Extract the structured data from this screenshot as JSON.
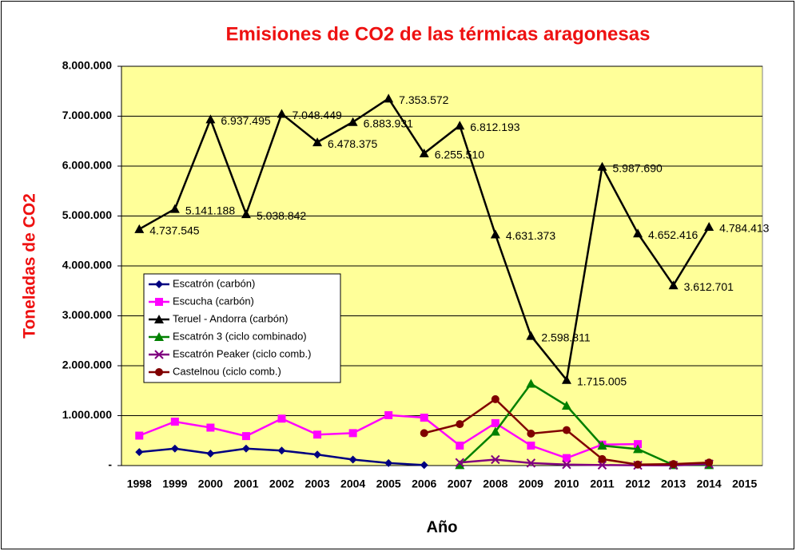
{
  "chart_data": {
    "type": "line",
    "title": "Emisiones de CO2 de las térmicas aragonesas",
    "x_label": "Año",
    "y_label": "Toneladas de CO2",
    "categories": [
      "1998",
      "1999",
      "2000",
      "2001",
      "2002",
      "2003",
      "2004",
      "2005",
      "2006",
      "2007",
      "2008",
      "2009",
      "2010",
      "2011",
      "2012",
      "2013",
      "2014",
      "2015"
    ],
    "ylim": [
      0,
      8000000
    ],
    "yticks": [
      {
        "value": 0,
        "label": "-"
      },
      {
        "value": 1000000,
        "label": "1.000.000"
      },
      {
        "value": 2000000,
        "label": "2.000.000"
      },
      {
        "value": 3000000,
        "label": "3.000.000"
      },
      {
        "value": 4000000,
        "label": "4.000.000"
      },
      {
        "value": 5000000,
        "label": "5.000.000"
      },
      {
        "value": 6000000,
        "label": "6.000.000"
      },
      {
        "value": 7000000,
        "label": "7.000.000"
      },
      {
        "value": 8000000,
        "label": "8.000.000"
      }
    ],
    "grid": true,
    "background": "#ffff99",
    "series": [
      {
        "name": "Escatrón (carbón)",
        "color": "#000080",
        "marker": "diamond",
        "values": [
          270000,
          340000,
          240000,
          340000,
          300000,
          220000,
          120000,
          50000,
          10000,
          null,
          null,
          null,
          null,
          null,
          null,
          null,
          null,
          null
        ]
      },
      {
        "name": "Escucha (carbón)",
        "color": "#ff00ff",
        "marker": "square",
        "values": [
          600000,
          880000,
          760000,
          590000,
          940000,
          620000,
          650000,
          1010000,
          960000,
          400000,
          850000,
          400000,
          150000,
          420000,
          430000,
          null,
          null,
          null
        ]
      },
      {
        "name": "Teruel - Andorra (carbón)",
        "color": "#000000",
        "marker": "triangle",
        "values": [
          4737545,
          5141188,
          6937495,
          5038842,
          7048449,
          6478375,
          6883931,
          7353572,
          6255510,
          6812193,
          4631373,
          2598811,
          1715005,
          5987690,
          4652416,
          3612701,
          4784413,
          null
        ],
        "value_labels": [
          "4.737.545",
          "5.141.188",
          "6.937.495",
          "5.038.842",
          "7.048.449",
          "6.478.375",
          "6.883.931",
          "7.353.572",
          "6.255.510",
          "6.812.193",
          "4.631.373",
          "2.598.811",
          "1.715.005",
          "5.987.690",
          "4.652.416",
          "3.612.701",
          "4.784.413",
          null
        ]
      },
      {
        "name": "Escatrón 3 (ciclo combinado)",
        "color": "#008000",
        "marker": "triangle",
        "values": [
          null,
          null,
          null,
          null,
          null,
          null,
          null,
          null,
          null,
          10000,
          680000,
          1640000,
          1200000,
          400000,
          330000,
          10000,
          10000,
          null
        ]
      },
      {
        "name": "Escatrón Peaker (ciclo comb.)",
        "color": "#800080",
        "marker": "x",
        "values": [
          null,
          null,
          null,
          null,
          null,
          null,
          null,
          null,
          null,
          60000,
          120000,
          50000,
          20000,
          10000,
          5000,
          5000,
          30000,
          null
        ]
      },
      {
        "name": "Castelnou (ciclo comb.)",
        "color": "#800000",
        "marker": "circle",
        "values": [
          null,
          null,
          null,
          null,
          null,
          null,
          null,
          null,
          650000,
          830000,
          1330000,
          640000,
          710000,
          130000,
          20000,
          30000,
          60000,
          null
        ]
      }
    ]
  }
}
